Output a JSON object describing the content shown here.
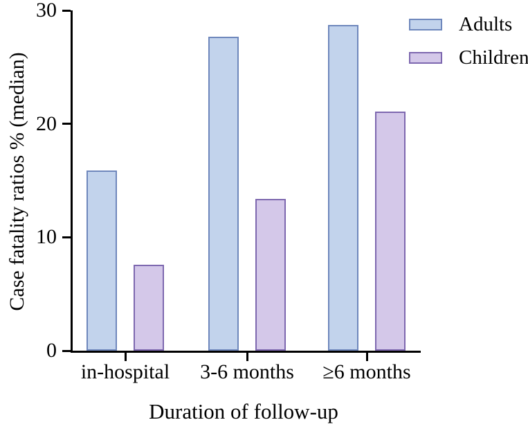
{
  "figure": {
    "background": "#ffffff",
    "axis_color": "#000000",
    "text_color": "#000000"
  },
  "chart_data": {
    "type": "bar",
    "title": "",
    "xlabel": "Duration of follow-up",
    "ylabel": "Case fatality ratios % (median)",
    "categories": [
      "in-hospital",
      "3-6 months",
      "≥6 months"
    ],
    "series": [
      {
        "name": "Adults",
        "fill": "#c2d3ec",
        "border": "#6e87bc",
        "values": [
          15.9,
          27.7,
          28.7
        ]
      },
      {
        "name": "Children",
        "fill": "#d4c8e9",
        "border": "#7d67af",
        "values": [
          7.6,
          13.4,
          21.1
        ]
      }
    ],
    "ylim": [
      0,
      30
    ],
    "yticks": [
      0,
      10,
      20,
      30
    ],
    "grid": false,
    "legend_position": "top-right"
  }
}
